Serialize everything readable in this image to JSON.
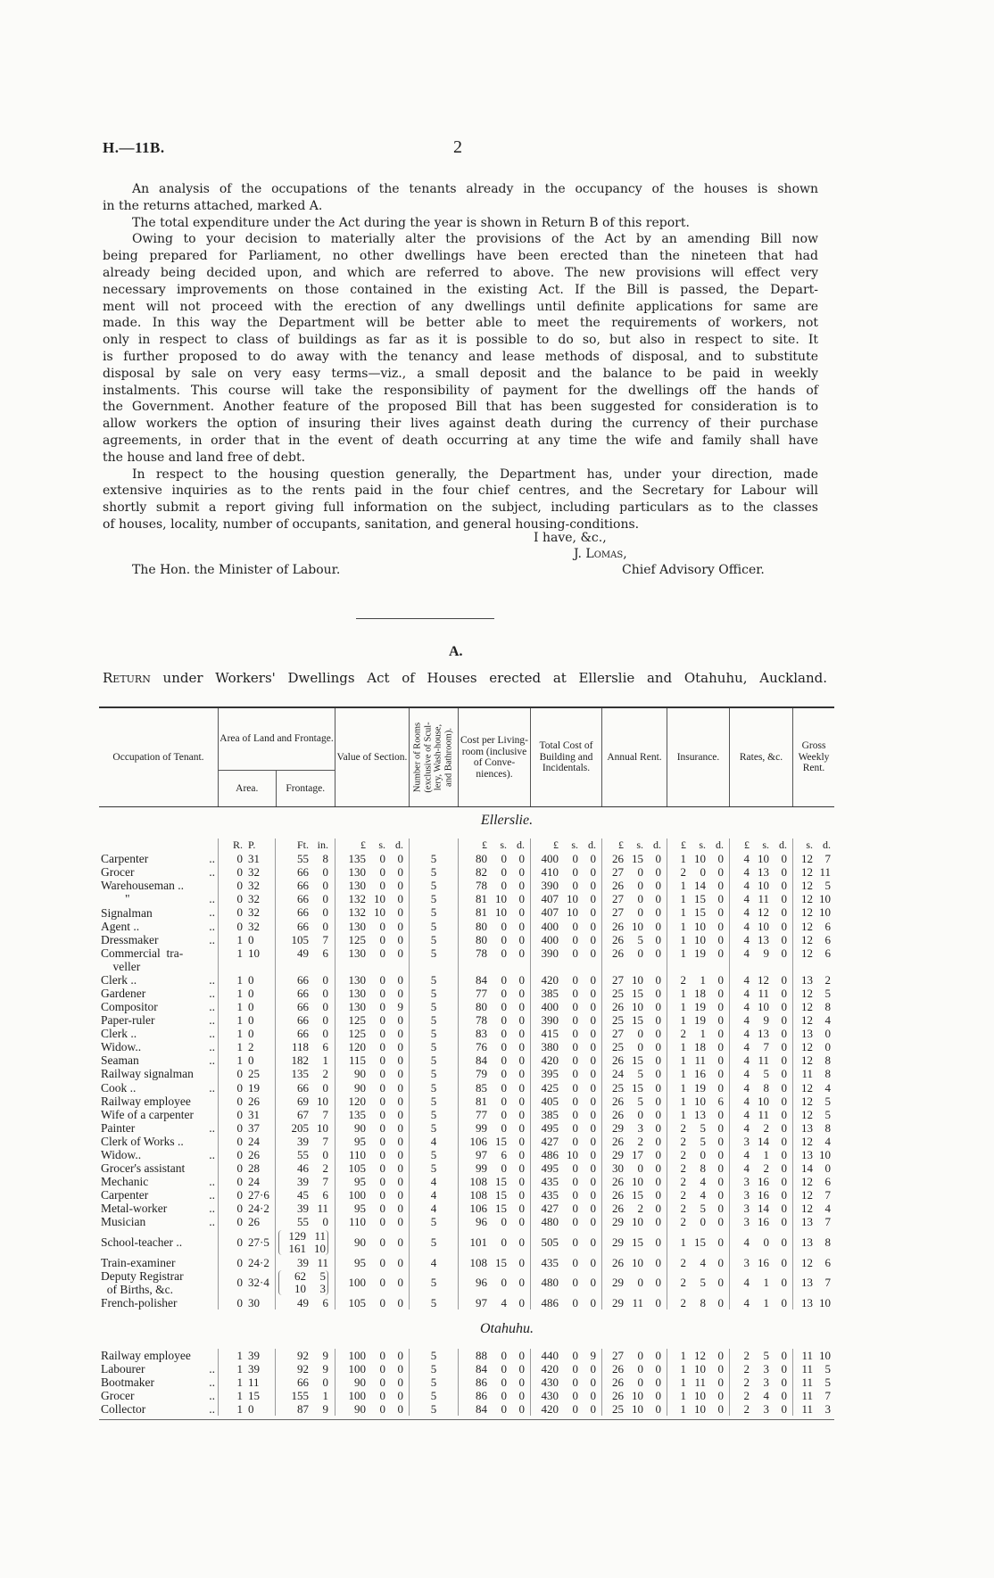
{
  "header": {
    "reference": "H.—11B.",
    "page_number": "2"
  },
  "paragraphs": [
    [
      "An analysis of the occupations of the tenants already in the occupancy of the houses is shown",
      "in the returns attached, marked A."
    ],
    [
      "The total expenditure under the Act during the year is shown in Return B of this report."
    ],
    [
      "Owing to your decision to materially alter the provisions of the Act by an amending Bill now",
      "being prepared for Parliament, no other dwellings have been erected than the nineteen that had",
      "already being decided upon, and which are referred to above.  The new provisions will effect very",
      "necessary improvements on those contained in the existing Act.  If the Bill is passed, the Depart-",
      "ment will not proceed with the erection of any dwellings until definite applications for same are",
      "made.  In this way the Department will be better able to meet the requirements of workers, not",
      "only in respect to class of buildings as far as it is possible to do so, but also in respect to site.  It",
      "is further proposed to do away with the tenancy and lease methods of disposal, and to substitute",
      "disposal by sale on very easy terms—viz., a small deposit and the balance to be paid in weekly",
      "instalments.  This course will take the responsibility of payment for the dwellings off the hands of",
      "the Government.  Another feature of the proposed Bill that has been suggested for consideration is to",
      "allow workers the option of insuring their lives against death during the currency of their purchase",
      "agreements, in order that in the event of death occurring at any time the wife and family shall have",
      "the house and land free of debt."
    ],
    [
      "In respect to the housing question generally, the Department has, under your direction, made",
      "extensive inquiries as to the rents paid in the four chief centres, and the Secretary for Labour will",
      "shortly submit a report giving full information on the subject, including particulars as to the classes",
      "of houses, locality, number of occupants, sanitation, and general housing-conditions."
    ]
  ],
  "signoff": {
    "closing": "I have, &c.,",
    "name": "J. Lomas,",
    "addressee": "The Hon. the Minister of Labour.",
    "title": "Chief Advisory Officer."
  },
  "return": {
    "letter": "A.",
    "title_lead": "Return",
    "title_rest": " under Workers' Dwellings Act of Houses erected at Ellerslie and Otahuhu, Auckland."
  },
  "table": {
    "headers": {
      "occupation": "Occupation of Tenant.",
      "area_group": "Area of Land and Frontage.",
      "area": "Area.",
      "frontage": "Frontage.",
      "value": "Value of Section.",
      "rooms": [
        "Number of Rooms",
        "(exclusive of Scul-",
        "lery, Wash-house,",
        "and Bathroom)."
      ],
      "cost_per_room": "Cost per Living-room (inclusive of Conve-niences).",
      "total_cost": "Total Cost of Building and Incidentals.",
      "annual_rent": "Annual Rent.",
      "insurance": "Insurance.",
      "rates": "Rates, &c.",
      "gross_rent": "Gross Weekly Rent."
    },
    "units": [
      "",
      "",
      "R. P.",
      "Ft. in.",
      "£ s. d.",
      "",
      "£ s. d.",
      "£ s. d.",
      "£ s. d.",
      "£ s. d.",
      "£ s. d.",
      "s. d."
    ],
    "sections": [
      {
        "name": "Ellerslie.",
        "rows": [
          [
            "Carpenter",
            "..",
            "0 31",
            "55 8",
            "135 0 0",
            "5",
            "80 0 0",
            "400 0 0",
            "26 15 0",
            "1 10 0",
            "4 10 0",
            "12 7"
          ],
          [
            "Grocer",
            "..",
            "0 32",
            "66 0",
            "130 0 0",
            "5",
            "82 0 0",
            "410 0 0",
            "27 0 0",
            "2 0 0",
            "4 13 0",
            "12 11"
          ],
          [
            "Warehouseman ..",
            "",
            "0 32",
            "66 0",
            "130 0 0",
            "5",
            "78 0 0",
            "390 0 0",
            "26 0 0",
            "1 14 0",
            "4 10 0",
            "12 5"
          ],
          [
            "        \"",
            "..",
            "0 32",
            "66 0",
            "132 10 0",
            "5",
            "81 10 0",
            "407 10 0",
            "27 0 0",
            "1 15 0",
            "4 11 0",
            "12 10"
          ],
          [
            "Signalman",
            "..",
            "0 32",
            "66 0",
            "132 10 0",
            "5",
            "81 10 0",
            "407 10 0",
            "27 0 0",
            "1 15 0",
            "4 12 0",
            "12 10"
          ],
          [
            "Agent ..",
            "..",
            "0 32",
            "66 0",
            "130 0 0",
            "5",
            "80 0 0",
            "400 0 0",
            "26 10 0",
            "1 10 0",
            "4 10 0",
            "12 6"
          ],
          [
            "Dressmaker",
            "..",
            "1 0",
            "105 7",
            "125 0 0",
            "5",
            "80 0 0",
            "400 0 0",
            "26 5 0",
            "1 10 0",
            "4 13 0",
            "12 6"
          ],
          [
            "Commercial  tra-\n    veller",
            "",
            "1 10",
            "49 6",
            "130 0 0",
            "5",
            "78 0 0",
            "390 0 0",
            "26 0 0",
            "1 19 0",
            "4 9 0",
            "12 6"
          ],
          [
            "Clerk ..",
            "..",
            "1 0",
            "66 0",
            "130 0 0",
            "5",
            "84 0 0",
            "420 0 0",
            "27 10 0",
            "2 1 0",
            "4 12 0",
            "13 2"
          ],
          [
            "Gardener",
            "..",
            "1 0",
            "66 0",
            "130 0 0",
            "5",
            "77 0 0",
            "385 0 0",
            "25 15 0",
            "1 18 0",
            "4 11 0",
            "12 5"
          ],
          [
            "Compositor",
            "..",
            "1 0",
            "66 0",
            "130 0 9",
            "5",
            "80 0 0",
            "400 0 0",
            "26 10 0",
            "1 19 0",
            "4 10 0",
            "12 8"
          ],
          [
            "Paper-ruler",
            "..",
            "1 0",
            "66 0",
            "125 0 0",
            "5",
            "78 0 0",
            "390 0 0",
            "25 15 0",
            "1 19 0",
            "4 9 0",
            "12 4"
          ],
          [
            "Clerk ..",
            "..",
            "1 0",
            "66 0",
            "125 0 0",
            "5",
            "83 0 0",
            "415 0 0",
            "27 0 0",
            "2 1 0",
            "4 13 0",
            "13 0"
          ],
          [
            "Widow..",
            "..",
            "1 2",
            "118 6",
            "120 0 0",
            "5",
            "76 0 0",
            "380 0 0",
            "25 0 0",
            "1 18 0",
            "4 7 0",
            "12 0"
          ],
          [
            "Seaman",
            "..",
            "1 0",
            "182 1",
            "115 0 0",
            "5",
            "84 0 0",
            "420 0 0",
            "26 15 0",
            "1 11 0",
            "4 11 0",
            "12 8"
          ],
          [
            "Railway signalman",
            "",
            "0 25",
            "135 2",
            "90 0 0",
            "5",
            "79 0 0",
            "395 0 0",
            "24 5 0",
            "1 16 0",
            "4 5 0",
            "11 8"
          ],
          [
            "Cook ..",
            "..",
            "0 19",
            "66 0",
            "90 0 0",
            "5",
            "85 0 0",
            "425 0 0",
            "25 15 0",
            "1 19 0",
            "4 8 0",
            "12 4"
          ],
          [
            "Railway employee",
            "",
            "0 26",
            "69 10",
            "120 0 0",
            "5",
            "81 0 0",
            "405 0 0",
            "26 5 0",
            "1 10 6",
            "4 10 0",
            "12 5"
          ],
          [
            "Wife of a carpenter",
            "",
            "0 31",
            "67 7",
            "135 0 0",
            "5",
            "77 0 0",
            "385 0 0",
            "26 0 0",
            "1 13 0",
            "4 11 0",
            "12 5"
          ],
          [
            "Painter",
            "..",
            "0 37",
            "205 10",
            "90 0 0",
            "5",
            "99 0 0",
            "495 0 0",
            "29 3 0",
            "2 5 0",
            "4 2 0",
            "13 8"
          ],
          [
            "Clerk of Works ..",
            "",
            "0 24",
            "39 7",
            "95 0 0",
            "4",
            "106 15 0",
            "427 0 0",
            "26 2 0",
            "2 5 0",
            "3 14 0",
            "12 4"
          ],
          [
            "Widow..",
            "..",
            "0 26",
            "55 0",
            "110 0 0",
            "5",
            "97 6 0",
            "486 10 0",
            "29 17 0",
            "2 0 0",
            "4 1 0",
            "13 10"
          ],
          [
            "Grocer's assistant",
            "",
            "0 28",
            "46 2",
            "105 0 0",
            "5",
            "99 0 0",
            "495 0 0",
            "30 0 0",
            "2 8 0",
            "4 2 0",
            "14 0"
          ],
          [
            "Mechanic",
            "..",
            "0 24",
            "39 7",
            "95 0 0",
            "4",
            "108 15 0",
            "435 0 0",
            "26 10 0",
            "2 4 0",
            "3 16 0",
            "12 6"
          ],
          [
            "Carpenter",
            "..",
            "0 27·6",
            "45 6",
            "100 0 0",
            "4",
            "108 15 0",
            "435 0 0",
            "26 15 0",
            "2 4 0",
            "3 16 0",
            "12 7"
          ],
          [
            "Metal-worker",
            "..",
            "0 24·2",
            "39 11",
            "95 0 0",
            "4",
            "106 15 0",
            "427 0 0",
            "26 2 0",
            "2 5 0",
            "3 14 0",
            "12 4"
          ],
          [
            "Musician",
            "..",
            "0 26",
            "55 0",
            "110 0 0",
            "5",
            "96 0 0",
            "480 0 0",
            "29 10 0",
            "2 0 0",
            "3 16 0",
            "13 7"
          ],
          [
            "School-teacher ..",
            "",
            "0 27·5",
            "129 11|161 10",
            "90 0 0",
            "5",
            "101 0 0",
            "505 0 0",
            "29 15 0",
            "1 15 0",
            "4 0 0",
            "13 8"
          ],
          [
            "Train-examiner",
            "",
            "0 24·2",
            "39 11",
            "95 0 0",
            "4",
            "108 15 0",
            "435 0 0",
            "26 10 0",
            "2 4 0",
            "3 16 0",
            "12 6"
          ],
          [
            "Deputy Registrar\n  of Births, &c.",
            "",
            "0 32·4",
            "62 5|10 3",
            "100 0 0",
            "5",
            "96 0 0",
            "480 0 0",
            "29 0 0",
            "2 5 0",
            "4 1 0",
            "13 7"
          ],
          [
            "French-polisher",
            "",
            "0 30",
            "49 6",
            "105 0 0",
            "5",
            "97 4 0",
            "486 0 0",
            "29 11 0",
            "2 8 0",
            "4 1 0",
            "13 10"
          ]
        ]
      },
      {
        "name": "Otahuhu.",
        "rows": [
          [
            "Railway employee",
            "",
            "1 39",
            "92 9",
            "100 0 0",
            "5",
            "88 0 0",
            "440 0 9",
            "27 0 0",
            "1 12 0",
            "2 5 0",
            "11 10"
          ],
          [
            "Labourer",
            "..",
            "1 39",
            "92 9",
            "100 0 0",
            "5",
            "84 0 0",
            "420 0 0",
            "26 0 0",
            "1 10 0",
            "2 3 0",
            "11 5"
          ],
          [
            "Bootmaker",
            "..",
            "1 11",
            "66 0",
            "90 0 0",
            "5",
            "86 0 0",
            "430 0 0",
            "26 0 0",
            "1 11 0",
            "2 3 0",
            "11 5"
          ],
          [
            "Grocer",
            "..",
            "1 15",
            "155 1",
            "100 0 0",
            "5",
            "86 0 0",
            "430 0 0",
            "26 10 0",
            "1 10 0",
            "2 4 0",
            "11 7"
          ],
          [
            "Collector",
            "..",
            "1 0",
            "87 9",
            "90 0 0",
            "5",
            "84 0 0",
            "420 0 0",
            "25 10 0",
            "1 10 0",
            "2 3 0",
            "11 3"
          ]
        ]
      }
    ]
  }
}
